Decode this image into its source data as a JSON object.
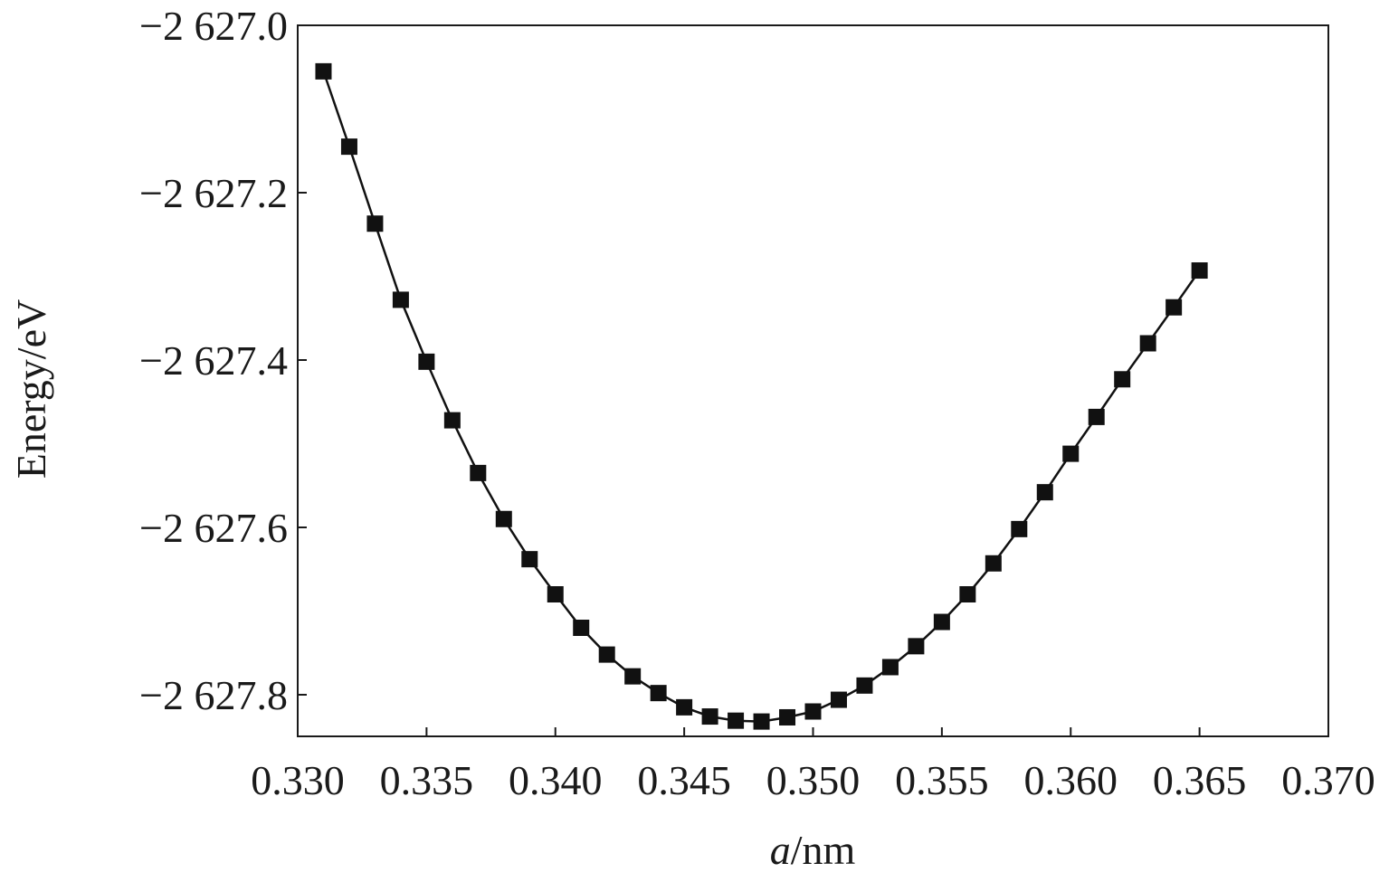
{
  "chart_data": {
    "type": "line",
    "xlabel_italic": "a",
    "xlabel_rest": "/nm",
    "ylabel": "Energy/eV",
    "xlim": [
      0.33,
      0.37
    ],
    "ylim": [
      -2627.85,
      -2627.0
    ],
    "xticks": [
      0.33,
      0.335,
      0.34,
      0.345,
      0.35,
      0.355,
      0.36,
      0.365,
      0.37
    ],
    "xtick_labels": [
      "0.330",
      "0.335",
      "0.340",
      "0.345",
      "0.350",
      "0.355",
      "0.360",
      "0.365",
      "0.370"
    ],
    "yticks": [
      -2627.0,
      -2627.2,
      -2627.4,
      -2627.6,
      -2627.8
    ],
    "ytick_labels": [
      "−2 627.0",
      "−2 627.2",
      "−2 627.4",
      "−2 627.6",
      "−2 627.8"
    ],
    "marker": "square",
    "grid": false,
    "series": [
      {
        "color": "#111111",
        "x": [
          0.331,
          0.332,
          0.333,
          0.334,
          0.335,
          0.336,
          0.337,
          0.338,
          0.339,
          0.34,
          0.341,
          0.342,
          0.343,
          0.344,
          0.345,
          0.346,
          0.347,
          0.348,
          0.349,
          0.35,
          0.351,
          0.352,
          0.353,
          0.354,
          0.355,
          0.356,
          0.357,
          0.358,
          0.359,
          0.36,
          0.361,
          0.362,
          0.363,
          0.364,
          0.365
        ],
        "y": [
          -2627.055,
          -2627.145,
          -2627.237,
          -2627.328,
          -2627.402,
          -2627.472,
          -2627.535,
          -2627.59,
          -2627.638,
          -2627.68,
          -2627.72,
          -2627.752,
          -2627.778,
          -2627.798,
          -2627.815,
          -2627.826,
          -2627.831,
          -2627.832,
          -2627.827,
          -2627.82,
          -2627.806,
          -2627.789,
          -2627.767,
          -2627.742,
          -2627.713,
          -2627.68,
          -2627.643,
          -2627.602,
          -2627.558,
          -2627.512,
          -2627.468,
          -2627.423,
          -2627.38,
          -2627.337,
          -2627.293
        ]
      }
    ]
  }
}
